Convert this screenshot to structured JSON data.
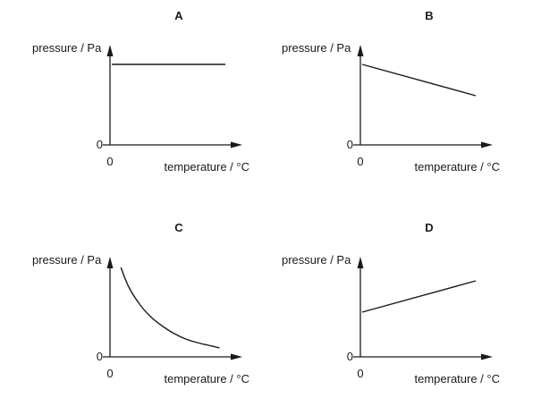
{
  "chart_data": [
    {
      "type": "line",
      "title": "A",
      "ylabel": "pressure / Pa",
      "xlabel": "temperature / °C",
      "origin_x_label": "0",
      "origin_y_label": "0",
      "shape": "constant",
      "x": [
        0,
        1
      ],
      "y": [
        0.9,
        0.9
      ]
    },
    {
      "type": "line",
      "title": "B",
      "ylabel": "pressure / Pa",
      "xlabel": "temperature / °C",
      "origin_x_label": "0",
      "origin_y_label": "0",
      "shape": "linear decreasing",
      "x": [
        0,
        1
      ],
      "y": [
        0.9,
        0.55
      ]
    },
    {
      "type": "line",
      "title": "C",
      "ylabel": "pressure / Pa",
      "xlabel": "temperature / °C",
      "origin_x_label": "0",
      "origin_y_label": "0",
      "shape": "decreasing curve",
      "x": [
        0.08,
        0.15,
        0.25,
        0.35,
        0.45,
        0.55,
        0.65,
        0.75,
        0.85,
        0.95
      ],
      "y": [
        1.0,
        0.78,
        0.58,
        0.44,
        0.34,
        0.26,
        0.2,
        0.16,
        0.13,
        0.1
      ]
    },
    {
      "type": "line",
      "title": "D",
      "ylabel": "pressure / Pa",
      "xlabel": "temperature / °C",
      "origin_x_label": "0",
      "origin_y_label": "0",
      "shape": "linear increasing",
      "x": [
        0,
        1
      ],
      "y": [
        0.5,
        0.85
      ]
    }
  ]
}
